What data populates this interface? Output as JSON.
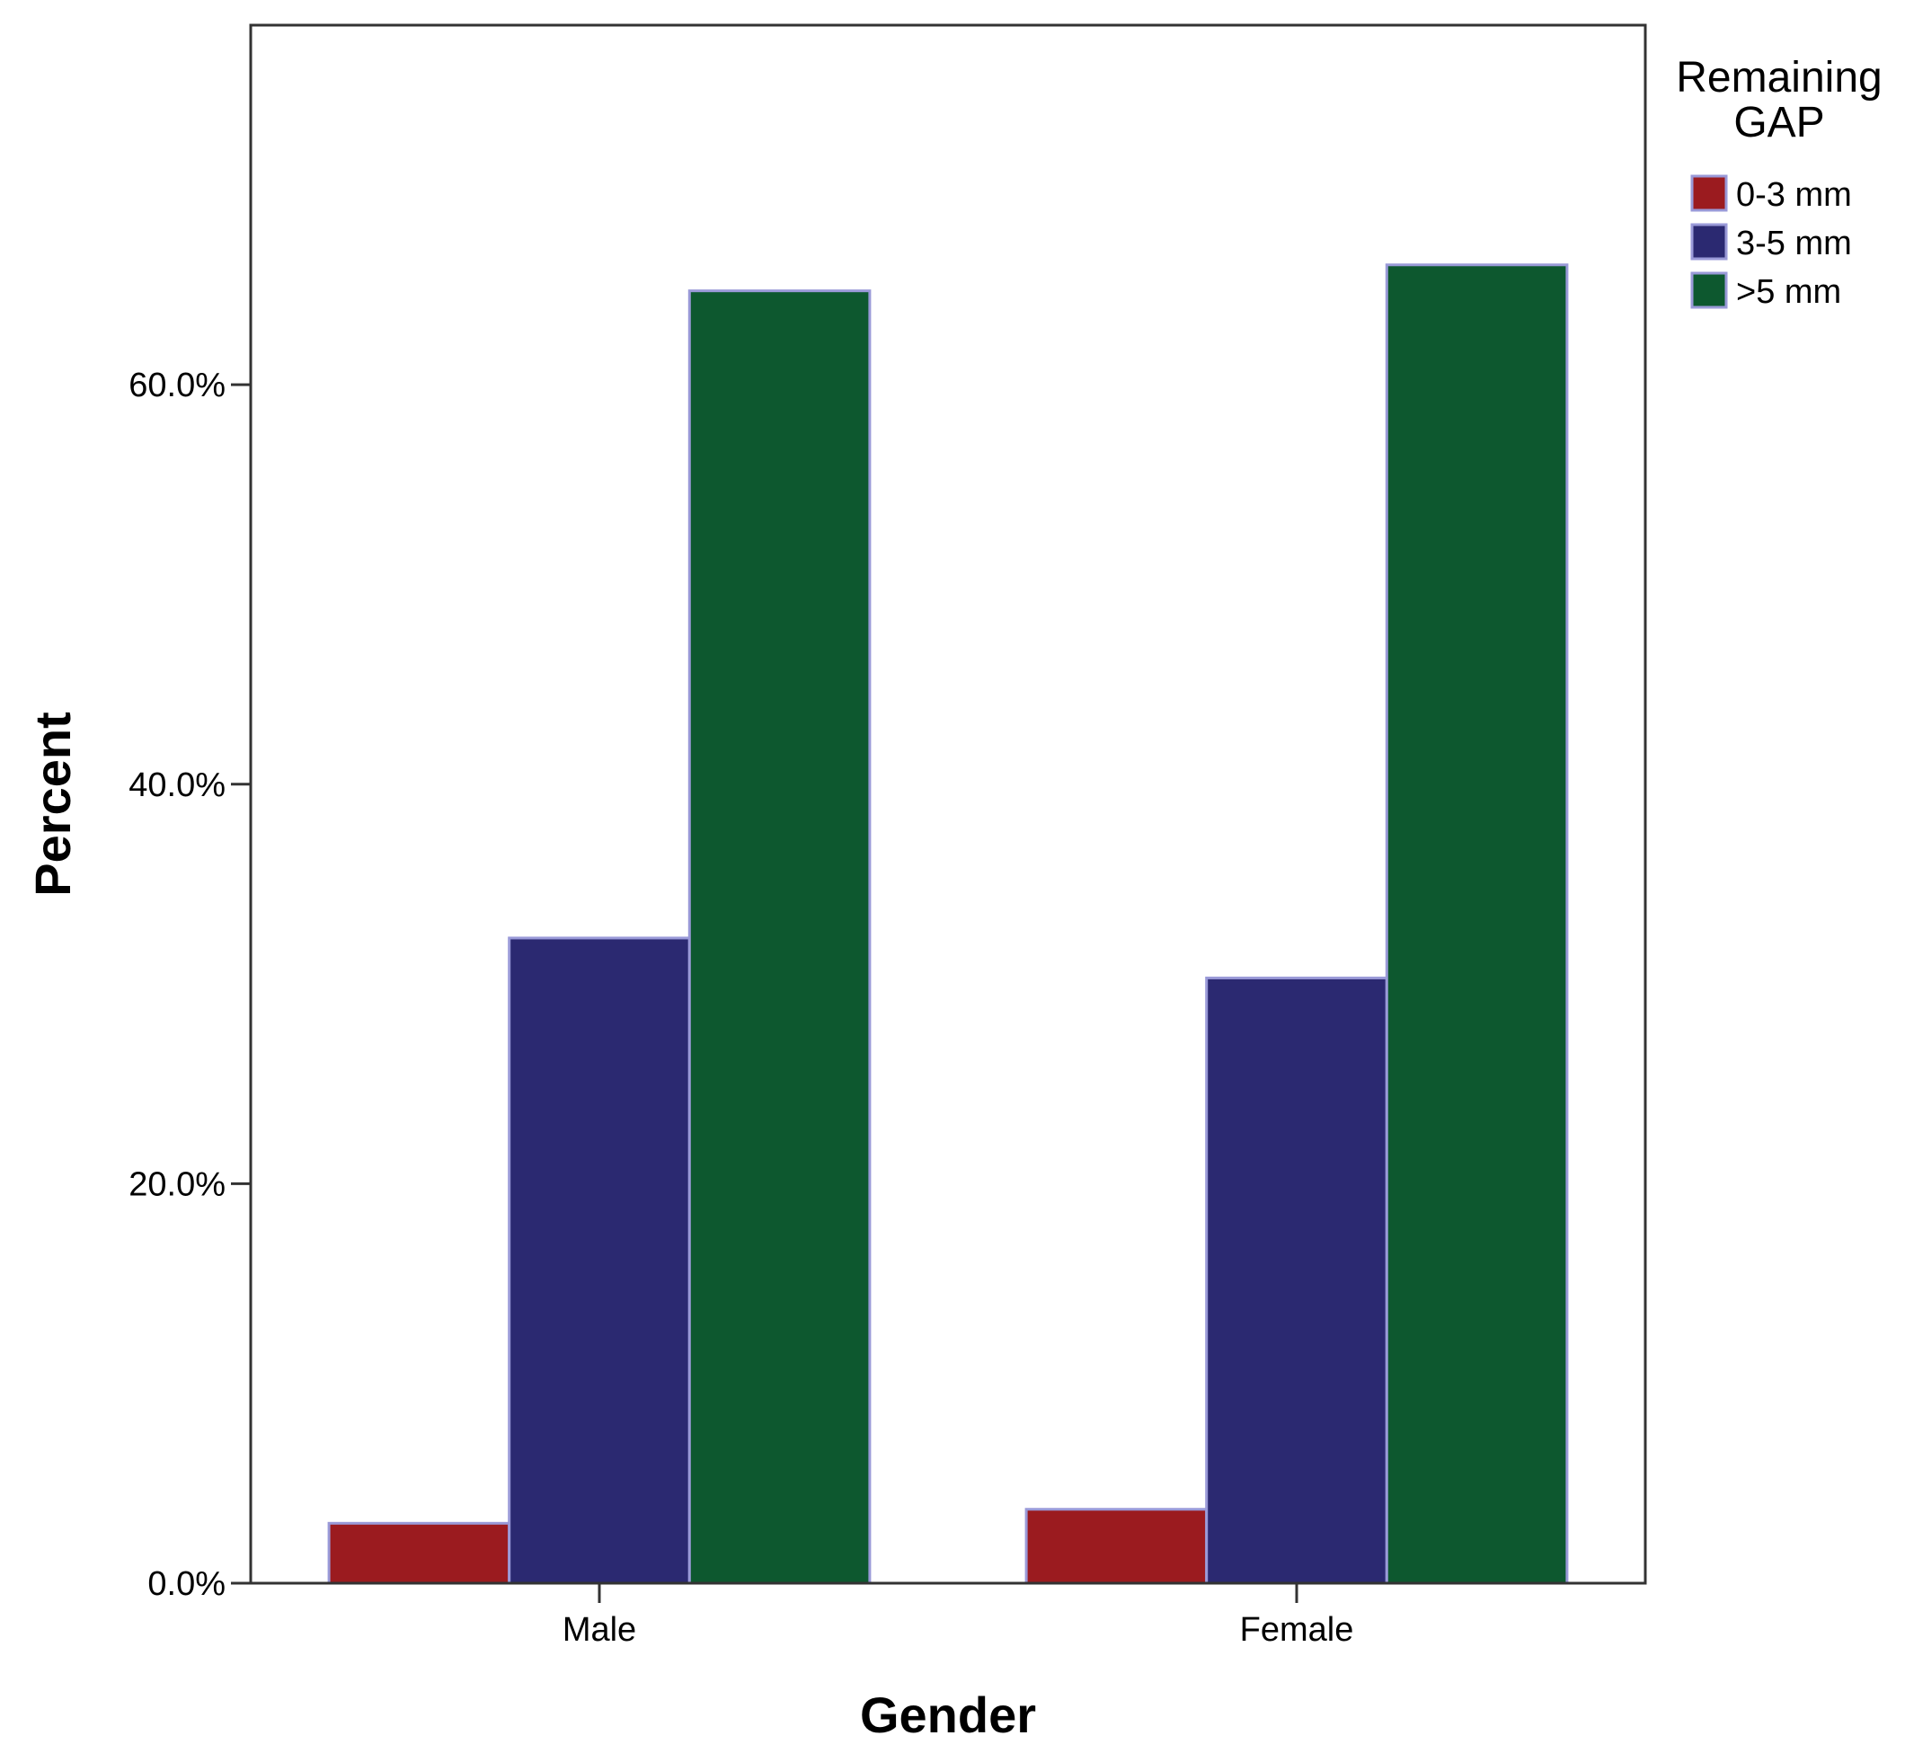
{
  "chart_data": {
    "type": "bar",
    "xlabel": "Gender",
    "ylabel": "Percent",
    "categories": [
      "Male",
      "Female"
    ],
    "series": [
      {
        "name": "0-3 mm",
        "color": "#9b1b1f",
        "values": [
          3.0,
          3.7
        ]
      },
      {
        "name": "3-5 mm",
        "color": "#2b2971",
        "values": [
          32.3,
          30.3
        ]
      },
      {
        "name": ">5 mm",
        "color": "#0d582f",
        "values": [
          64.7,
          66.0
        ]
      }
    ],
    "ylim": [
      0,
      78
    ],
    "yticks": [
      0,
      20,
      40,
      60
    ],
    "ytick_labels": [
      "0.0%",
      "20.0%",
      "40.0%",
      "60.0%"
    ],
    "grid": false,
    "legend": {
      "title_lines": [
        "Remaining",
        "GAP"
      ],
      "placement": "right"
    }
  }
}
